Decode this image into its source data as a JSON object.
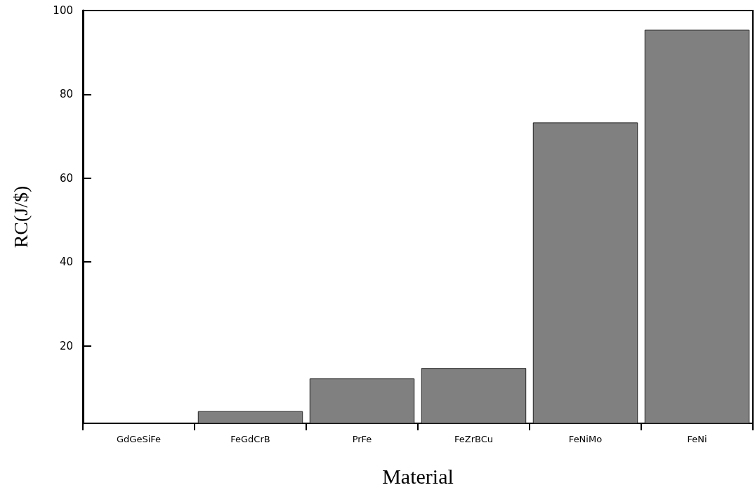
{
  "chart_data": {
    "type": "bar",
    "xlabel": "Material",
    "ylabel": "RC(J/$)",
    "categories": [
      "GdGeSiFe",
      "FeGdCrB",
      "PrFe",
      "FeZrBCu",
      "FeNiMo",
      "FeNi"
    ],
    "values": [
      null,
      4.4,
      12.2,
      14.7,
      73.3,
      95.4
    ],
    "color": "#808080",
    "ylim": [
      1.5,
      100
    ],
    "yticks": [
      20,
      40,
      60,
      80,
      100
    ],
    "grid": false
  }
}
